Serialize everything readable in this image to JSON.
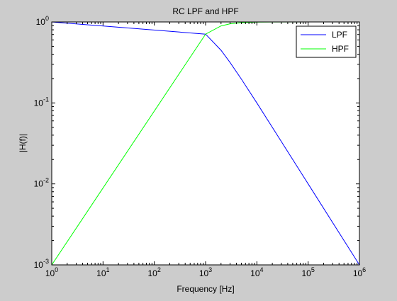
{
  "figure": {
    "background": "#cccccc"
  },
  "chart_data": {
    "type": "line",
    "title": "RC LPF and HPF",
    "xlabel": "Frequency [Hz]",
    "ylabel": "|H(f)|",
    "xscale": "log",
    "yscale": "log",
    "xlim": [
      1,
      1000000
    ],
    "ylim": [
      0.001,
      1
    ],
    "x_ticks": [
      {
        "base": "10",
        "exp": "0",
        "value": 1
      },
      {
        "base": "10",
        "exp": "1",
        "value": 10
      },
      {
        "base": "10",
        "exp": "2",
        "value": 100
      },
      {
        "base": "10",
        "exp": "3",
        "value": 1000
      },
      {
        "base": "10",
        "exp": "4",
        "value": 10000
      },
      {
        "base": "10",
        "exp": "5",
        "value": 100000
      },
      {
        "base": "10",
        "exp": "6",
        "value": 1000000
      }
    ],
    "y_ticks": [
      {
        "base": "10",
        "exp": "-3",
        "value": 0.001
      },
      {
        "base": "10",
        "exp": "-2",
        "value": 0.01
      },
      {
        "base": "10",
        "exp": "-1",
        "value": 0.1
      },
      {
        "base": "10",
        "exp": "0",
        "value": 1
      }
    ],
    "grid": false,
    "legend": "top-right",
    "x": [
      1,
      1000,
      2000,
      3000,
      5000,
      10000,
      100000,
      1000000
    ],
    "series": [
      {
        "name": "LPF",
        "color": "#0000ff",
        "values": [
          1,
          0.707,
          0.447,
          0.316,
          0.196,
          0.1,
          0.01,
          0.001
        ]
      },
      {
        "name": "HPF",
        "color": "#00ff00",
        "values": [
          0.001,
          0.707,
          0.894,
          0.949,
          0.981,
          0.995,
          1,
          1
        ]
      }
    ]
  }
}
